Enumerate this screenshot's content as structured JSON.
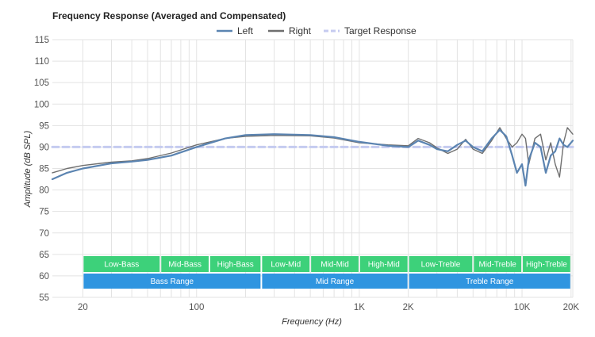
{
  "chart_data": {
    "type": "line",
    "title": "Frequency Response (Averaged and Compensated)",
    "xlabel": "Frequency (Hz)",
    "ylabel": "Amplitude (dB SPL)",
    "xscale": "log",
    "xlim": [
      13,
      20500
    ],
    "ylim": [
      55,
      115
    ],
    "yticks": [
      55,
      60,
      65,
      70,
      75,
      80,
      85,
      90,
      95,
      100,
      105,
      110,
      115
    ],
    "xticks": [
      {
        "value": 20,
        "label": "20"
      },
      {
        "value": 100,
        "label": "100"
      },
      {
        "value": 1000,
        "label": "1K"
      },
      {
        "value": 2000,
        "label": "2K"
      },
      {
        "value": 10000,
        "label": "10K"
      },
      {
        "value": 20000,
        "label": "20K"
      }
    ],
    "grid": true,
    "legend_position": "top-center",
    "legend": [
      {
        "name": "Left",
        "style": "line",
        "color": "#5b84b1"
      },
      {
        "name": "Right",
        "style": "line",
        "color": "#6f6f6f"
      },
      {
        "name": "Target Response",
        "style": "dashed",
        "color": "#c5cbf0"
      }
    ],
    "series": [
      {
        "name": "Left",
        "color": "#5b84b1",
        "points": [
          [
            13,
            82.5
          ],
          [
            16,
            84
          ],
          [
            20,
            85
          ],
          [
            30,
            86.2
          ],
          [
            40,
            86.6
          ],
          [
            50,
            87
          ],
          [
            70,
            88
          ],
          [
            100,
            90
          ],
          [
            150,
            92
          ],
          [
            200,
            92.8
          ],
          [
            300,
            93
          ],
          [
            500,
            92.8
          ],
          [
            700,
            92.3
          ],
          [
            1000,
            91.2
          ],
          [
            1500,
            90.3
          ],
          [
            2000,
            90
          ],
          [
            2300,
            91.5
          ],
          [
            2700,
            90.5
          ],
          [
            3000,
            89.5
          ],
          [
            3500,
            89
          ],
          [
            4000,
            90.5
          ],
          [
            4500,
            91.5
          ],
          [
            5000,
            90
          ],
          [
            5700,
            89
          ],
          [
            6500,
            92
          ],
          [
            7300,
            94
          ],
          [
            8000,
            92.5
          ],
          [
            8700,
            88
          ],
          [
            9300,
            84
          ],
          [
            10000,
            86
          ],
          [
            10500,
            81
          ],
          [
            11000,
            87
          ],
          [
            12000,
            91
          ],
          [
            13000,
            90
          ],
          [
            14000,
            84
          ],
          [
            15000,
            88
          ],
          [
            16000,
            89
          ],
          [
            17000,
            92
          ],
          [
            18000,
            90.5
          ],
          [
            19000,
            90
          ],
          [
            20500,
            91.5
          ]
        ]
      },
      {
        "name": "Right",
        "color": "#6f6f6f",
        "points": [
          [
            13,
            84
          ],
          [
            16,
            85
          ],
          [
            20,
            85.7
          ],
          [
            30,
            86.5
          ],
          [
            40,
            86.8
          ],
          [
            50,
            87.3
          ],
          [
            70,
            88.6
          ],
          [
            100,
            90.5
          ],
          [
            150,
            92
          ],
          [
            200,
            92.5
          ],
          [
            300,
            92.7
          ],
          [
            500,
            92.6
          ],
          [
            700,
            92.1
          ],
          [
            1000,
            91
          ],
          [
            1500,
            90.5
          ],
          [
            2000,
            90.3
          ],
          [
            2300,
            92
          ],
          [
            2700,
            91
          ],
          [
            3000,
            89.8
          ],
          [
            3500,
            88.5
          ],
          [
            4000,
            89.5
          ],
          [
            4500,
            91.8
          ],
          [
            5000,
            89.5
          ],
          [
            5700,
            88.5
          ],
          [
            6500,
            91.5
          ],
          [
            7300,
            94.5
          ],
          [
            8000,
            92
          ],
          [
            8700,
            90
          ],
          [
            9300,
            91
          ],
          [
            10000,
            93
          ],
          [
            10500,
            92
          ],
          [
            11000,
            86
          ],
          [
            12000,
            92
          ],
          [
            13000,
            93
          ],
          [
            14000,
            87
          ],
          [
            15000,
            91
          ],
          [
            16000,
            86
          ],
          [
            17000,
            83
          ],
          [
            18000,
            91
          ],
          [
            19000,
            94.5
          ],
          [
            20500,
            93
          ]
        ]
      },
      {
        "name": "Target Response",
        "color": "#c5cbf0",
        "dashed": true,
        "points": [
          [
            13,
            90
          ],
          [
            20500,
            90
          ]
        ]
      }
    ],
    "annotations": {
      "range_bands": [
        {
          "label": "Low-Bass",
          "from": 20,
          "to": 60,
          "row": 1,
          "color": "#3dd17a"
        },
        {
          "label": "Mid-Bass",
          "from": 60,
          "to": 120,
          "row": 1,
          "color": "#3dd17a"
        },
        {
          "label": "High-Bass",
          "from": 120,
          "to": 250,
          "row": 1,
          "color": "#3dd17a"
        },
        {
          "label": "Low-Mid",
          "from": 250,
          "to": 500,
          "row": 1,
          "color": "#3dd17a"
        },
        {
          "label": "Mid-Mid",
          "from": 500,
          "to": 1000,
          "row": 1,
          "color": "#3dd17a"
        },
        {
          "label": "High-Mid",
          "from": 1000,
          "to": 2000,
          "row": 1,
          "color": "#3dd17a"
        },
        {
          "label": "Low-Treble",
          "from": 2000,
          "to": 5000,
          "row": 1,
          "color": "#3dd17a"
        },
        {
          "label": "Mid-Treble",
          "from": 5000,
          "to": 10000,
          "row": 1,
          "color": "#3dd17a"
        },
        {
          "label": "High-Treble",
          "from": 10000,
          "to": 20000,
          "row": 1,
          "color": "#3dd17a"
        },
        {
          "label": "Bass Range",
          "from": 20,
          "to": 250,
          "row": 2,
          "color": "#2f95e0"
        },
        {
          "label": "Mid Range",
          "from": 250,
          "to": 2000,
          "row": 2,
          "color": "#2f95e0"
        },
        {
          "label": "Treble Range",
          "from": 2000,
          "to": 20000,
          "row": 2,
          "color": "#2f95e0"
        }
      ]
    }
  }
}
